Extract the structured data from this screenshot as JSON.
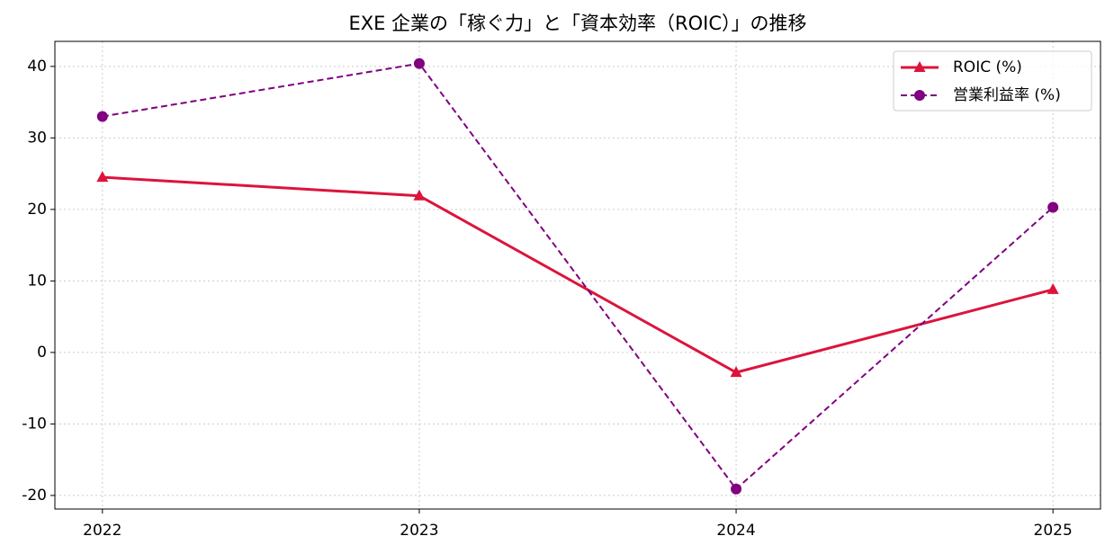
{
  "chart_data": {
    "type": "line",
    "title": "EXE 企業の「稼ぐ力」と「資本効率（ROIC）」の推移",
    "x": [
      2022,
      2023,
      2024,
      2025
    ],
    "xlim": [
      2021.85,
      2025.15
    ],
    "xticks": [
      2022,
      2023,
      2024,
      2025
    ],
    "ylim": [
      -21.9,
      43.5
    ],
    "yticks": [
      -20,
      -10,
      0,
      10,
      20,
      30,
      40
    ],
    "grid": true,
    "legend": "upper right",
    "series": [
      {
        "name": "ROIC (%)",
        "color": "#dc143c",
        "marker": "triangle",
        "linestyle": "solid",
        "values": [
          24.5,
          21.9,
          -2.8,
          8.8
        ]
      },
      {
        "name": "営業利益率 (%)",
        "color": "#800080",
        "marker": "circle",
        "linestyle": "dashed",
        "values": [
          33.0,
          40.4,
          -19.1,
          20.3
        ]
      }
    ]
  }
}
